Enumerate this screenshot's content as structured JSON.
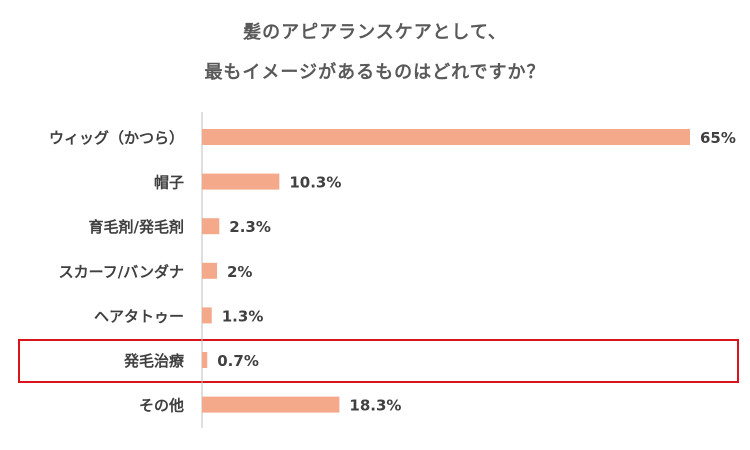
{
  "chart_data": {
    "type": "bar",
    "orientation": "horizontal",
    "title": "髪のアピアランスケアとして、最もイメージがあるものはどれですか？",
    "title_lines": [
      "髪のアピアランスケアとして、",
      "最もイメージがあるものはどれですか？"
    ],
    "categories": [
      "ウィッグ（かつら）",
      "帽子",
      "育毛剤/発毛剤",
      "スカーフ/バンダナ",
      "ヘアタトゥー",
      "発毛治療",
      "その他"
    ],
    "values": [
      65,
      10.3,
      2.3,
      2,
      1.3,
      0.7,
      18.3
    ],
    "value_labels": [
      "65%",
      "10.3%",
      "2.3%",
      "2%",
      "1.3%",
      "0.7%",
      "18.3%"
    ],
    "highlighted_category": "発毛治療",
    "xlim": [
      0,
      65
    ],
    "grid": false,
    "xlabel": "",
    "ylabel": "",
    "colors": {
      "bar": "#f4a98a",
      "highlight_box": "#d9141c",
      "axis": "#bfbfbf",
      "text": "#404040",
      "title": "#595959"
    }
  }
}
